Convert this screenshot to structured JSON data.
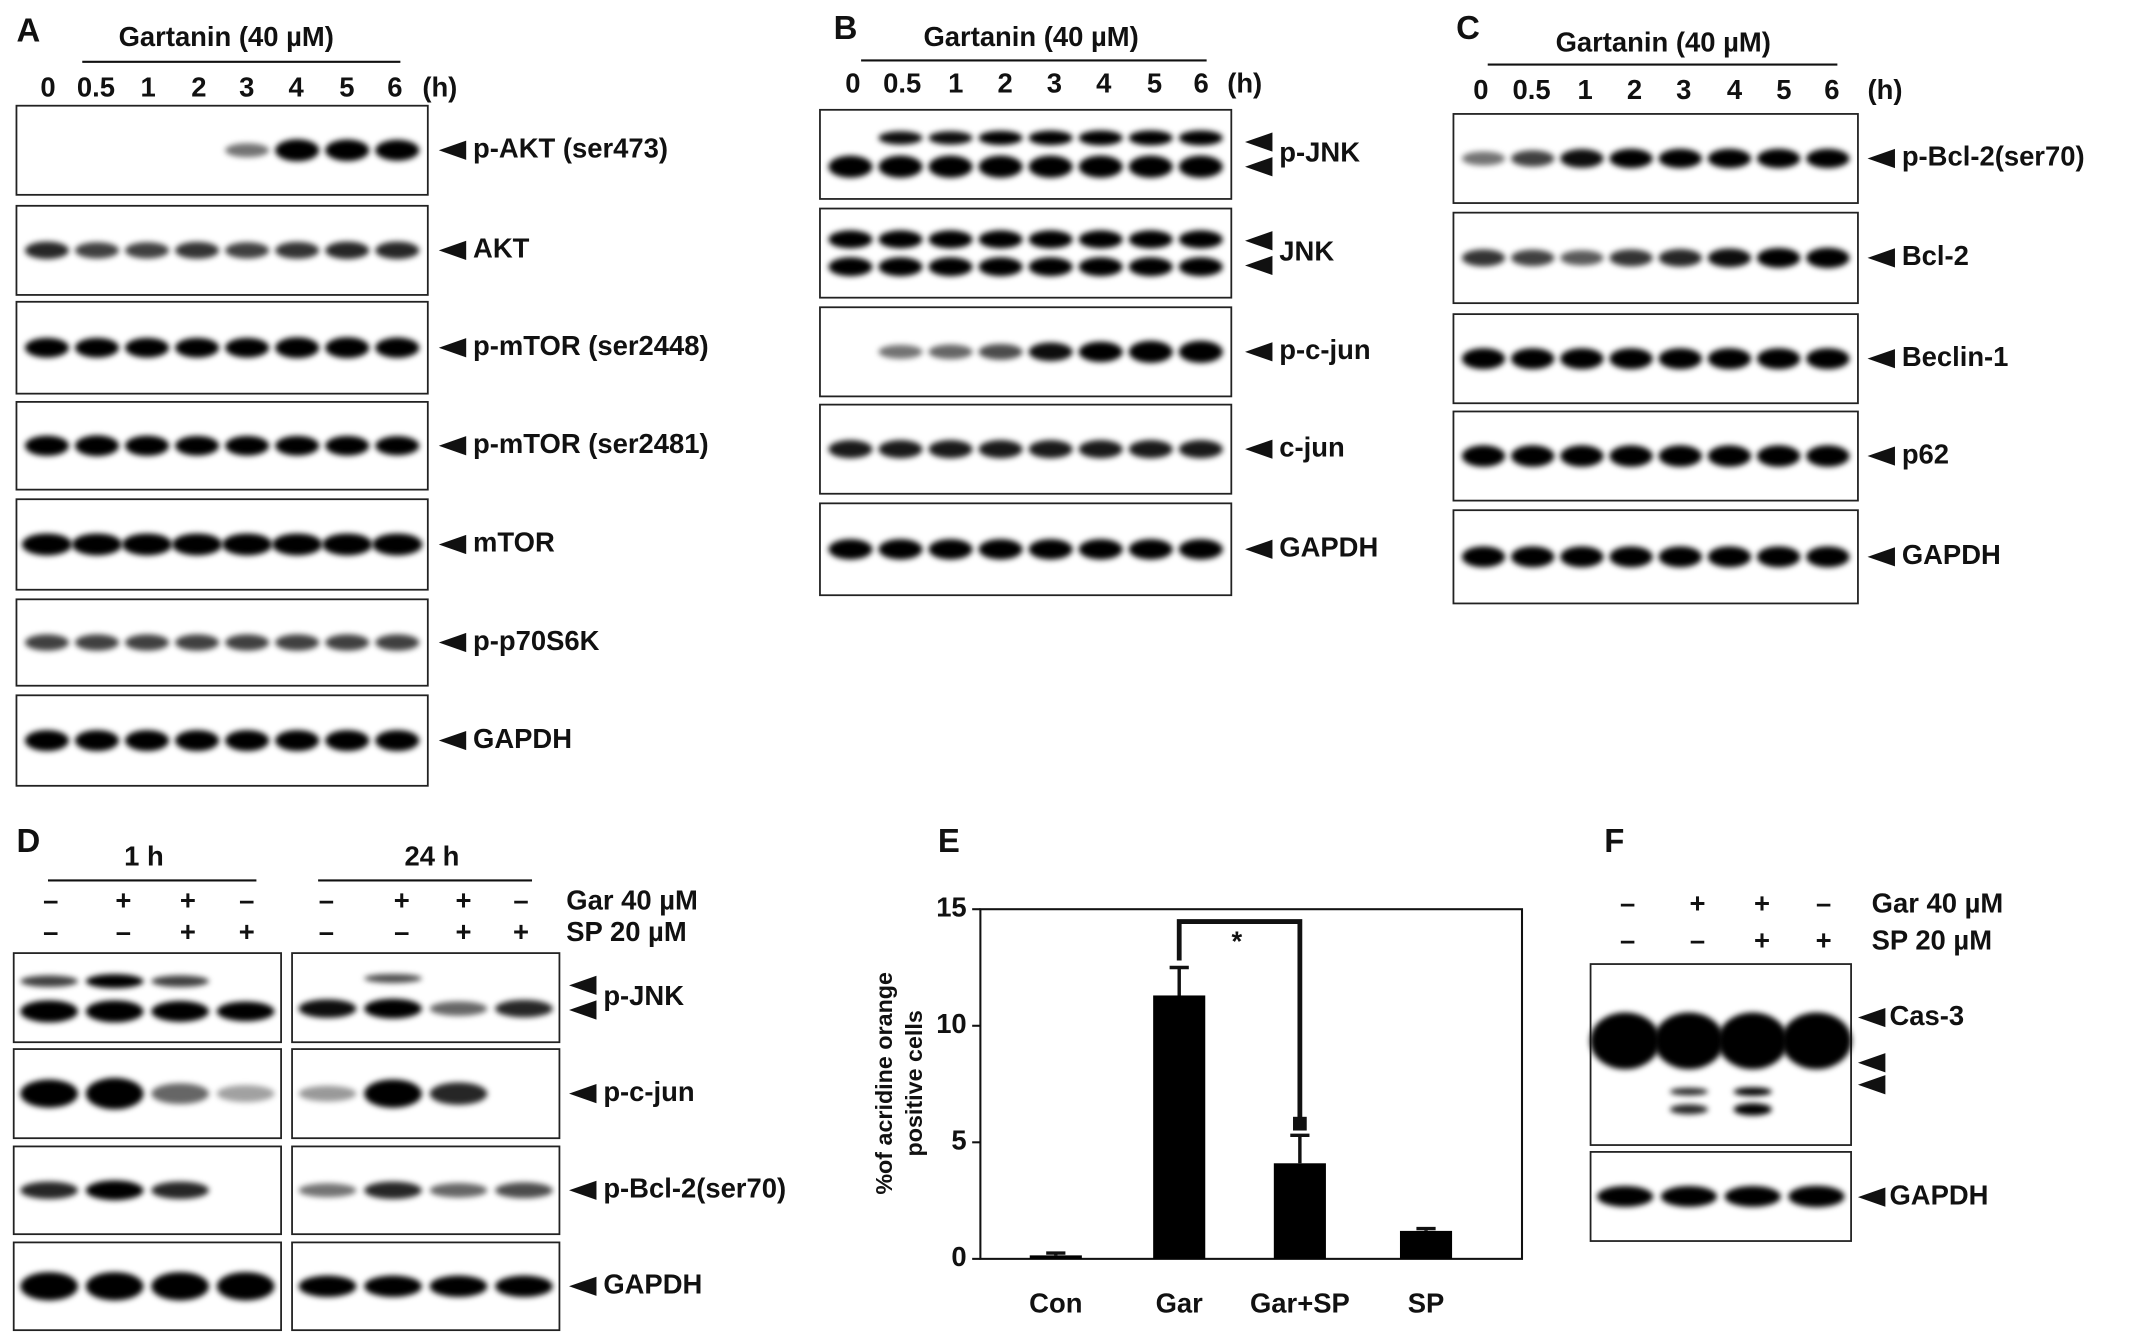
{
  "panel_a": {
    "letter": "A",
    "treatment": "Gartanin (40 µM)",
    "times": [
      "0",
      "0.5",
      "1",
      "2",
      "3",
      "4",
      "5",
      "6"
    ],
    "unit": "(h)",
    "blots": [
      "p-AKT (ser473)",
      "AKT",
      "p-mTOR (ser2448)",
      "p-mTOR (ser2481)",
      "mTOR",
      "p-p70S6K",
      "GAPDH"
    ]
  },
  "panel_b": {
    "letter": "B",
    "treatment": "Gartanin (40 µM)",
    "times": [
      "0",
      "0.5",
      "1",
      "2",
      "3",
      "4",
      "5",
      "6"
    ],
    "unit": "(h)",
    "blots": [
      "p-JNK",
      "JNK",
      "p-c-jun",
      "c-jun",
      "GAPDH"
    ]
  },
  "panel_c": {
    "letter": "C",
    "treatment": "Gartanin (40 µM)",
    "times": [
      "0",
      "0.5",
      "1",
      "2",
      "3",
      "4",
      "5",
      "6"
    ],
    "unit": "(h)",
    "blots": [
      "p-Bcl-2(ser70)",
      "Bcl-2",
      "Beclin-1",
      "p62",
      "GAPDH"
    ]
  },
  "panel_d": {
    "letter": "D",
    "groups": [
      "1 h",
      "24 h"
    ],
    "conditions": [
      {
        "label": "Gar 40 µM",
        "signs": [
          "–",
          "+",
          "+",
          "–",
          "–",
          "+",
          "+",
          "–"
        ]
      },
      {
        "label": "SP 20 µM",
        "signs": [
          "–",
          "–",
          "+",
          "+",
          "–",
          "–",
          "+",
          "+"
        ]
      }
    ],
    "blots": [
      "p-JNK",
      "p-c-jun",
      "p-Bcl-2(ser70)",
      "GAPDH"
    ]
  },
  "panel_f": {
    "letter": "F",
    "conditions": [
      {
        "label": "Gar 40 µM",
        "signs": [
          "–",
          "+",
          "+",
          "–"
        ]
      },
      {
        "label": "SP 20 µM",
        "signs": [
          "–",
          "–",
          "+",
          "+"
        ]
      }
    ],
    "blots": [
      "Cas-3",
      "GAPDH"
    ]
  },
  "chart_data": {
    "type": "bar",
    "letter": "E",
    "y_label": [
      "%of acridine orange",
      "positive cells"
    ],
    "categories": [
      "Con",
      "Gar",
      "Gar+SP",
      "SP"
    ],
    "values": [
      0.15,
      11.3,
      4.1,
      1.2
    ],
    "errors": [
      0.1,
      1.2,
      1.2,
      0.1
    ],
    "color": "#000000",
    "ylim": [
      0,
      15
    ],
    "yticks": [
      0,
      5,
      10,
      15
    ],
    "annotation": "*"
  }
}
